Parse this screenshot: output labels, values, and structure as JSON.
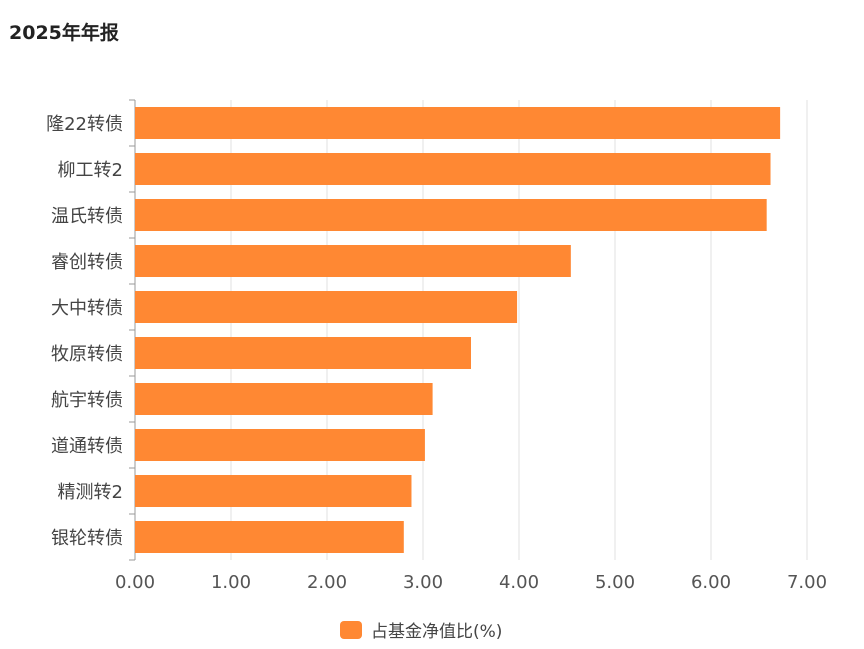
{
  "header": {
    "title": "2025年年报"
  },
  "chart_data": {
    "type": "bar",
    "orientation": "horizontal",
    "categories": [
      "隆22转债",
      "柳工转2",
      "温氏转债",
      "睿创转债",
      "大中转债",
      "牧原转债",
      "航宇转债",
      "道通转债",
      "精测转2",
      "银轮转债"
    ],
    "series": [
      {
        "name": "占基金净值比(%)",
        "values": [
          6.72,
          6.62,
          6.58,
          4.54,
          3.98,
          3.5,
          3.1,
          3.02,
          2.88,
          2.8
        ],
        "color": "#FF8833"
      }
    ],
    "xlim": [
      0,
      7
    ],
    "xticks": [
      "0.00",
      "1.00",
      "2.00",
      "3.00",
      "4.00",
      "5.00",
      "6.00",
      "7.00"
    ],
    "grid": true,
    "legend_position": "bottom-center"
  }
}
